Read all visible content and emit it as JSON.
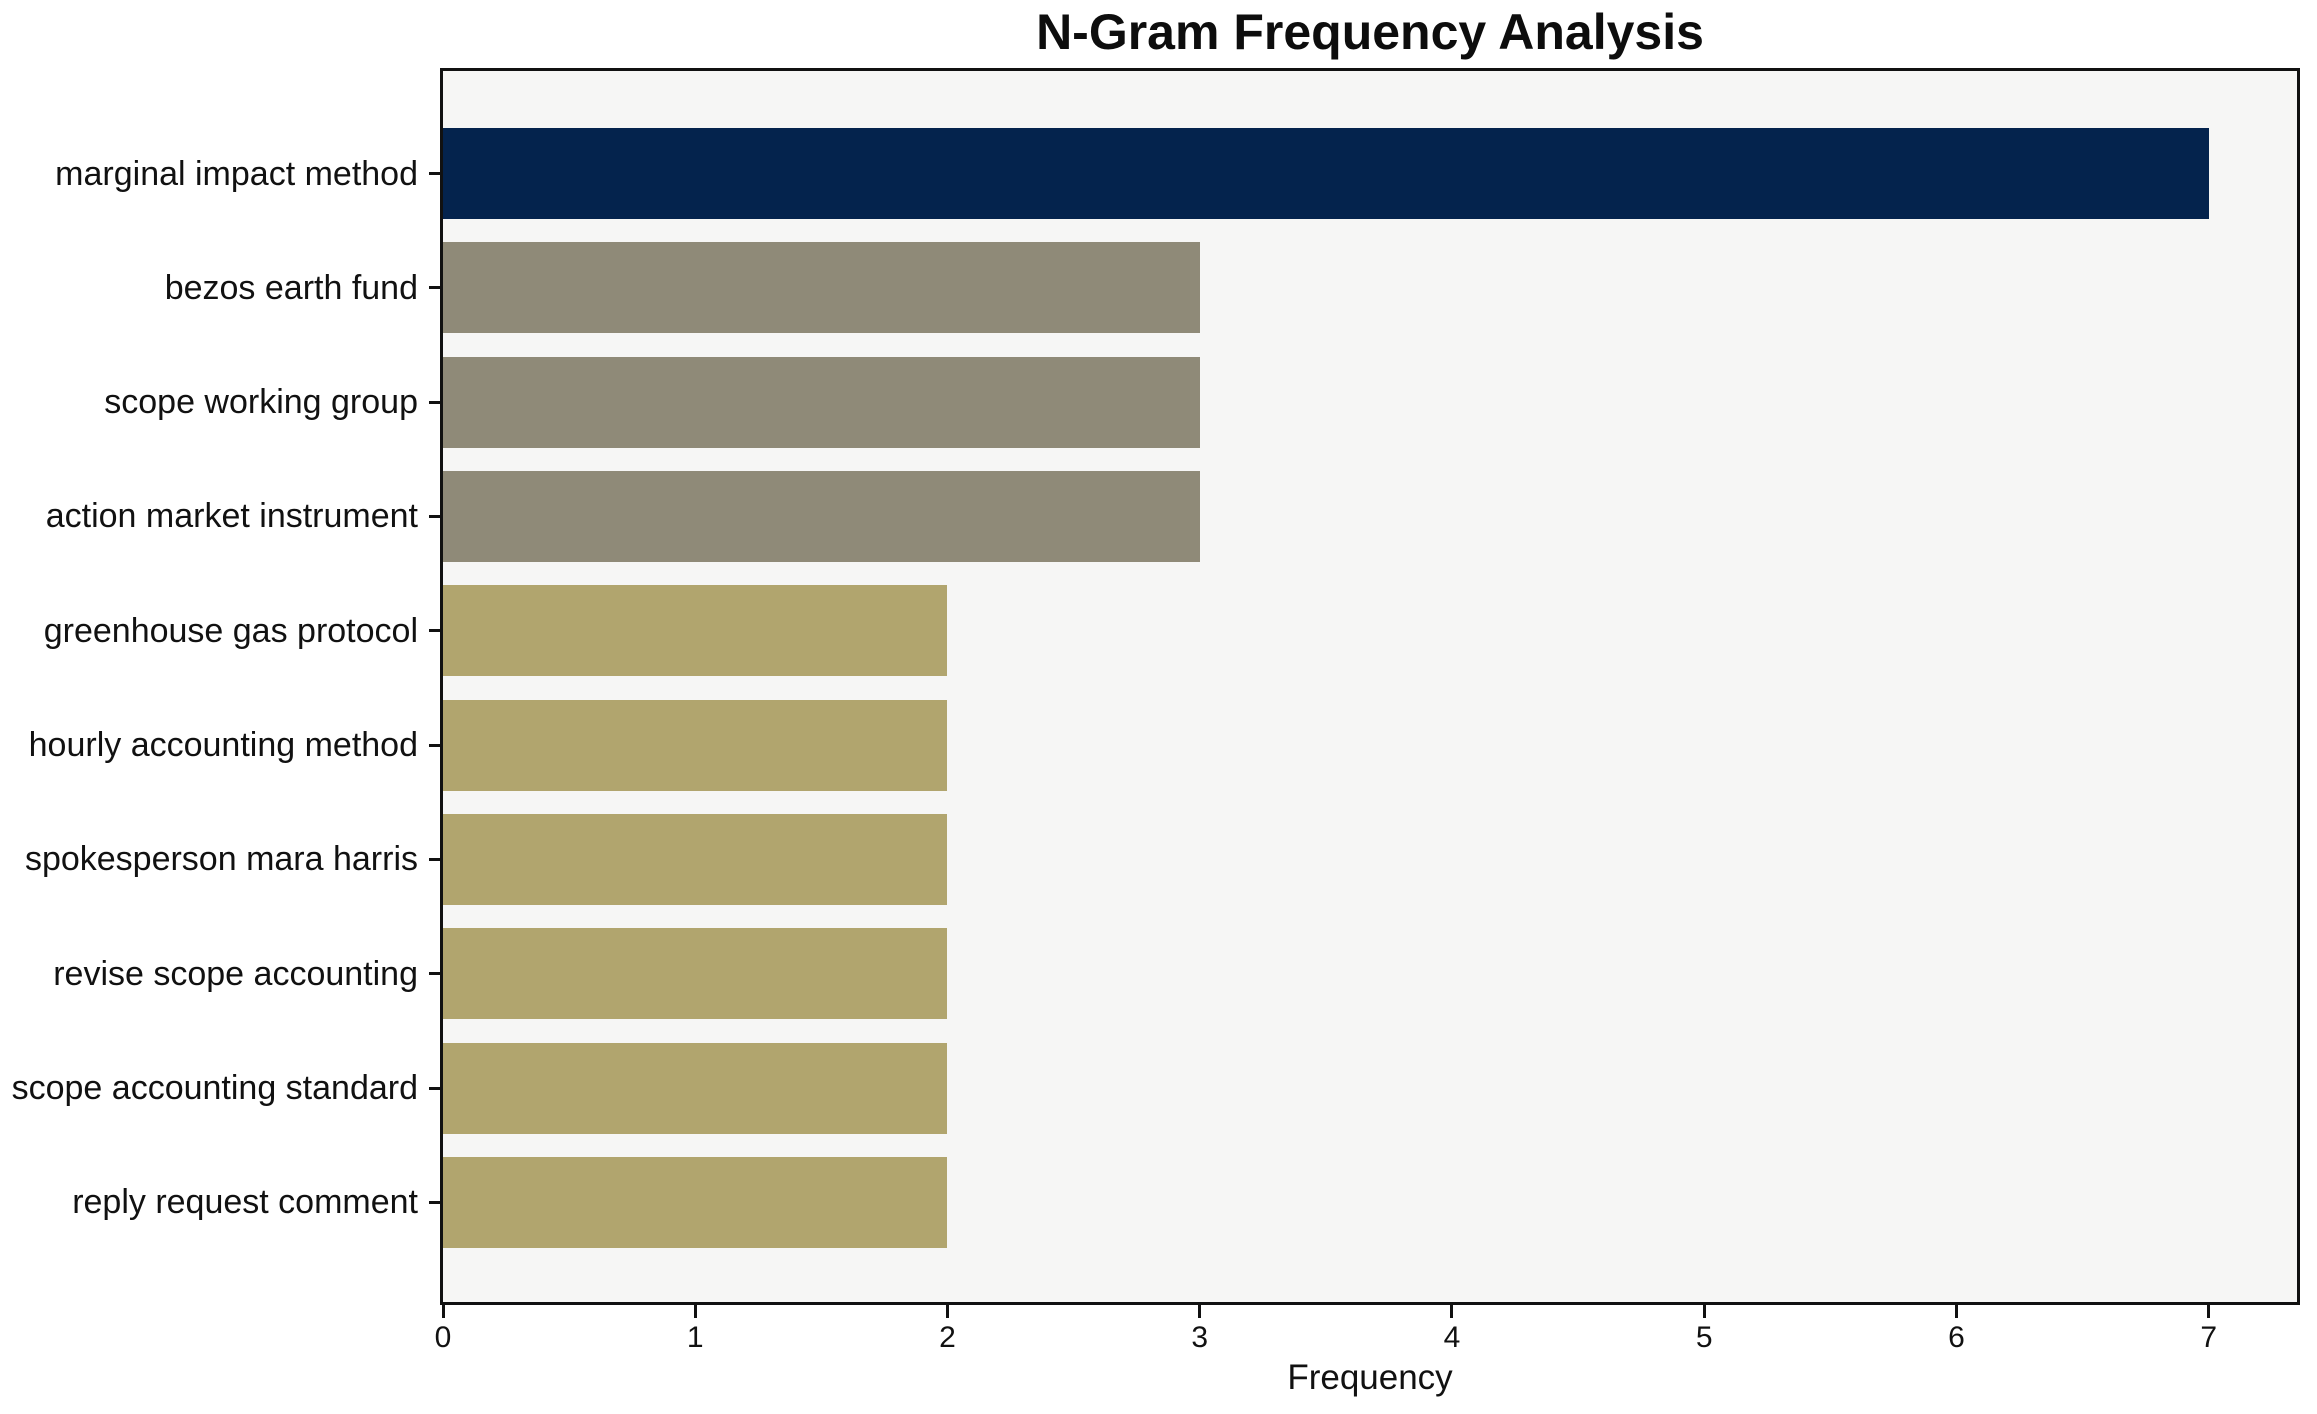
{
  "chart_data": {
    "type": "bar",
    "orientation": "horizontal",
    "title": "N-Gram Frequency Analysis",
    "xlabel": "Frequency",
    "categories": [
      "marginal impact method",
      "bezos earth fund",
      "scope working group",
      "action market instrument",
      "greenhouse gas protocol",
      "hourly accounting method",
      "spokesperson mara harris",
      "revise scope accounting",
      "scope accounting standard",
      "reply request comment"
    ],
    "values": [
      7,
      3,
      3,
      3,
      2,
      2,
      2,
      2,
      2,
      2
    ],
    "bar_colors": [
      "#04234d",
      "#8f8a78",
      "#8f8a78",
      "#8f8a78",
      "#b1a56e",
      "#b1a56e",
      "#b1a56e",
      "#b1a56e",
      "#b1a56e",
      "#b1a56e"
    ],
    "x_ticks": [
      "0",
      "1",
      "2",
      "3",
      "4",
      "5",
      "6",
      "7"
    ],
    "xlim": [
      0,
      7.35
    ],
    "grid": false,
    "plot_background": "#f6f6f5",
    "figure_background": "#ffffff",
    "axis_color": "#111111"
  }
}
